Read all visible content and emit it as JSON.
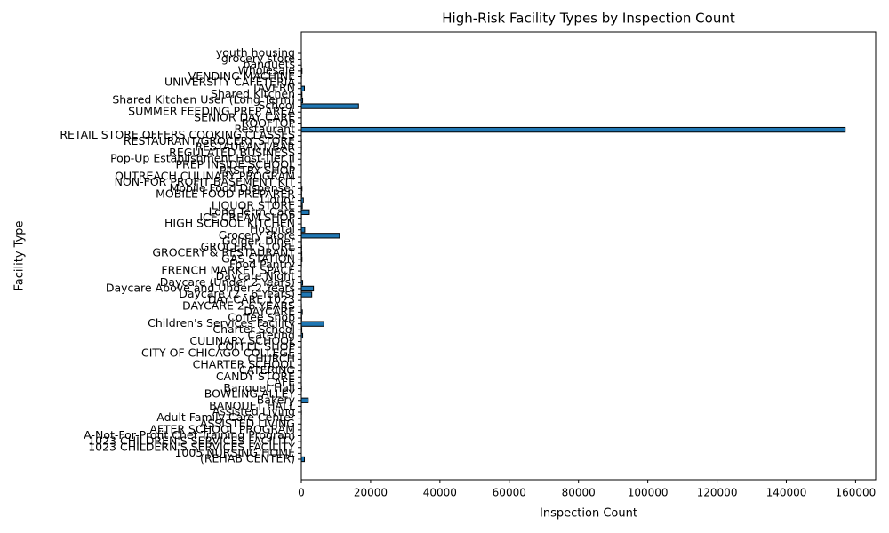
{
  "chart_data": {
    "type": "barh",
    "title": "High-Risk Facility Types by Inspection Count",
    "xlabel": "Inspection Count",
    "ylabel": "Facility Type",
    "categories": [
      "(REHAB CENTER)",
      "1005 NURSING HOME",
      "1023 CHILDERN'S SERVICES FACILITY",
      "1023 CHILDREN'S SERVICES FACILITY",
      "A-Not-For-Profit Chef Training Program",
      "AFTER SCHOOL PROGRAM",
      "ASSISTED LIVING",
      "Adult Family Care Center",
      "Assisted Living",
      "BANQUET HALL",
      "Bakery",
      "BOWLING ALLEY",
      "Banquet Hall",
      "CAFE",
      "CANDY STORE",
      "CATERING",
      "CHARTER SCHOOL",
      "CHURCH",
      "CITY OF CHICAGO COLLEGE",
      "COFFEE SHOP",
      "CULINARY SCHOOL",
      "Catering",
      "Charter School",
      "Children's Services Facility",
      "Coffee Shop",
      "DAYCARE",
      "DAYCARE 2-6 YEARS",
      "DAY CARE 1023",
      "Daycare (2 - 6 Years)",
      "Daycare Above and Under 2 Years",
      "Daycare (Under 2 Years)",
      "Daycare Night",
      "FRENCH MARKET SPACE",
      "Food Pantry",
      "GAS STATION",
      "GROCERY & RESTAURANT",
      "GROCERY STORE",
      "Golden Diner",
      "Grocery Store",
      "Hospital",
      "HIGH SCHOOL KITCHEN",
      "ICE CREAM SHOP",
      "Long Term Care",
      "LIQUOR STORE",
      "Liquor",
      "MOBILE FOOD PREPARER",
      "Mobile Food Dispenser",
      "NON-FOR PROFIT BASEMENT KIT",
      "OUTREACH CULINARY PROGRAM",
      "PASTRY SHOP",
      "PREP INSIDE SCHOOL",
      "Pop-Up Establishment Host-Tier II",
      "REGULATED BUSINESS",
      "RESTAURANT/BAR",
      "RESTAURANT/GROCERY STORE",
      "RETAIL STORE OFFERS COOKING CLASSES",
      "Restaurant",
      "ROOFTOP",
      "SENIOR DAY CARE",
      "SUMMER FEEDING PREP AREA",
      "School",
      "Shared Kitchen User (Long Term)",
      "Shared Kitchen",
      "TAVERN",
      "UNIVERSITY CAFETERIA",
      "VENDING MACHINE",
      "Wholesale",
      "banquets",
      "grocery store",
      "youth housing"
    ],
    "values": [
      900,
      5,
      3,
      10,
      2,
      8,
      15,
      30,
      50,
      12,
      2000,
      4,
      60,
      20,
      10,
      40,
      25,
      30,
      6,
      20,
      12,
      400,
      150,
      6500,
      100,
      300,
      40,
      8,
      3000,
      3500,
      400,
      20,
      8,
      50,
      200,
      150,
      100,
      60,
      11000,
      1000,
      30,
      40,
      2300,
      300,
      600,
      100,
      200,
      5,
      4,
      20,
      8,
      10,
      30,
      50,
      40,
      10,
      157000,
      30,
      20,
      15,
      16500,
      400,
      200,
      900,
      30,
      50,
      200,
      30,
      10,
      5
    ],
    "color": "#1f77b4",
    "edgecolor": "#000000",
    "xlim": [
      0,
      165800
    ],
    "xticks": [
      0,
      20000,
      40000,
      60000,
      80000,
      100000,
      120000,
      140000,
      160000
    ]
  }
}
